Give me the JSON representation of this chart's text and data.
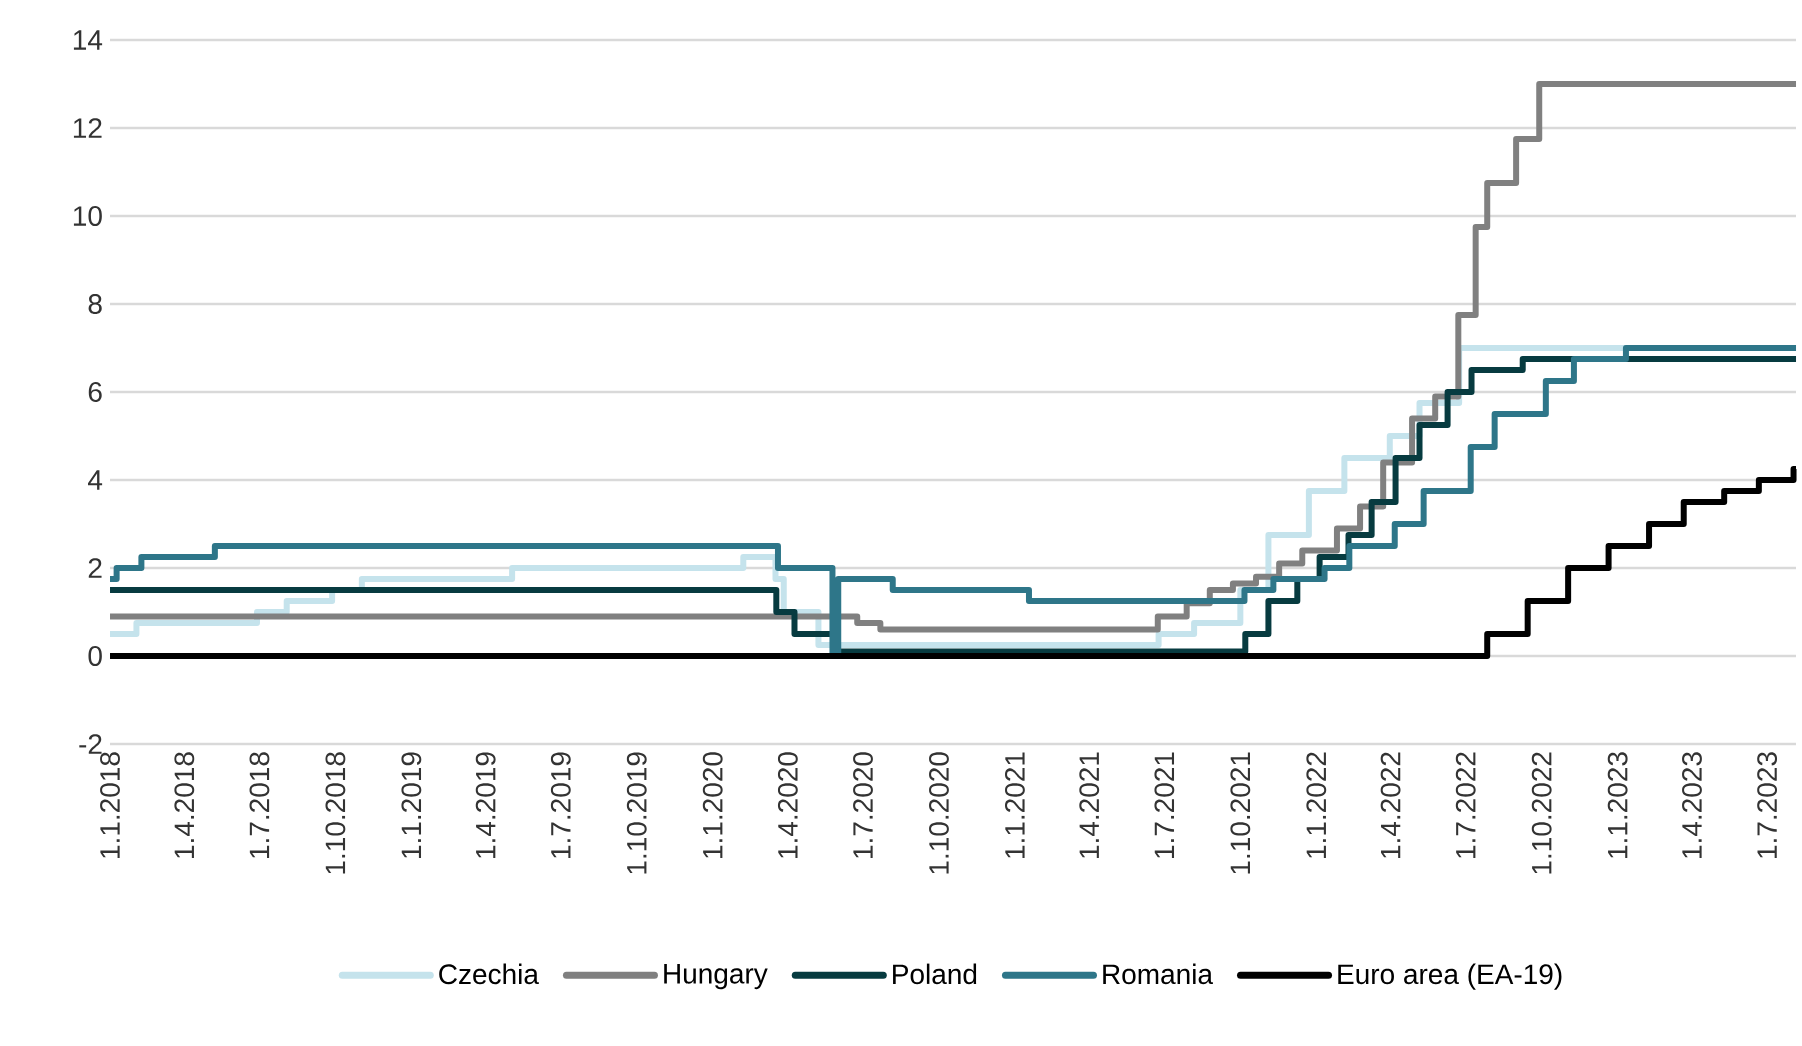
{
  "chart_data": {
    "type": "step",
    "ylim": [
      -2,
      14
    ],
    "yticks": [
      -2,
      0,
      2,
      4,
      6,
      8,
      10,
      12,
      14
    ],
    "xlim": [
      "2018-01-01",
      "2023-08-05"
    ],
    "xticks": [
      {
        "value": "2018-01-01",
        "label": "1.1.2018"
      },
      {
        "value": "2018-04-01",
        "label": "1.4.2018"
      },
      {
        "value": "2018-07-01",
        "label": "1.7.2018"
      },
      {
        "value": "2018-10-01",
        "label": "1.10.2018"
      },
      {
        "value": "2019-01-01",
        "label": "1.1.2019"
      },
      {
        "value": "2019-04-01",
        "label": "1.4.2019"
      },
      {
        "value": "2019-07-01",
        "label": "1.7.2019"
      },
      {
        "value": "2019-10-01",
        "label": "1.10.2019"
      },
      {
        "value": "2020-01-01",
        "label": "1.1.2020"
      },
      {
        "value": "2020-04-01",
        "label": "1.4.2020"
      },
      {
        "value": "2020-07-01",
        "label": "1.7.2020"
      },
      {
        "value": "2020-10-01",
        "label": "1.10.2020"
      },
      {
        "value": "2021-01-01",
        "label": "1.1.2021"
      },
      {
        "value": "2021-04-01",
        "label": "1.4.2021"
      },
      {
        "value": "2021-07-01",
        "label": "1.7.2021"
      },
      {
        "value": "2021-10-01",
        "label": "1.10.2021"
      },
      {
        "value": "2022-01-01",
        "label": "1.1.2022"
      },
      {
        "value": "2022-04-01",
        "label": "1.4.2022"
      },
      {
        "value": "2022-07-01",
        "label": "1.7.2022"
      },
      {
        "value": "2022-10-01",
        "label": "1.10.2022"
      },
      {
        "value": "2023-01-01",
        "label": "1.1.2023"
      },
      {
        "value": "2023-04-01",
        "label": "1.4.2023"
      },
      {
        "value": "2023-07-01",
        "label": "1.7.2023"
      }
    ],
    "grid": "y",
    "legend": "bottom",
    "line_style": "solid",
    "marker": "none",
    "series": [
      {
        "name": "Czechia",
        "color": "#c5e3ec",
        "x": [
          "2018-01-01",
          "2018-02-02",
          "2018-06-28",
          "2018-08-03",
          "2018-09-27",
          "2018-11-02",
          "2019-05-03",
          "2020-02-07",
          "2020-03-17",
          "2020-03-27",
          "2020-05-08",
          "2021-06-24",
          "2021-08-06",
          "2021-10-01",
          "2021-11-04",
          "2021-12-23",
          "2022-02-04",
          "2022-03-31",
          "2022-05-06",
          "2022-06-23",
          "2023-01-10"
        ],
        "values": [
          0.5,
          0.75,
          1.0,
          1.25,
          1.5,
          1.75,
          2.0,
          2.25,
          1.75,
          1.0,
          0.25,
          0.5,
          0.75,
          1.5,
          2.75,
          3.75,
          4.5,
          5.0,
          5.75,
          7.0,
          7.0
        ]
      },
      {
        "name": "Hungary",
        "color": "#808080",
        "x": [
          "2018-01-01",
          "2020-06-24",
          "2020-07-22",
          "2021-06-23",
          "2021-07-28",
          "2021-08-25",
          "2021-09-22",
          "2021-10-20",
          "2021-11-17",
          "2021-12-15",
          "2022-01-26",
          "2022-02-23",
          "2022-03-23",
          "2022-04-27",
          "2022-05-25",
          "2022-06-22",
          "2022-07-13",
          "2022-07-27",
          "2022-08-31",
          "2022-09-28",
          "2023-08-05"
        ],
        "values": [
          0.9,
          0.75,
          0.6,
          0.9,
          1.2,
          1.5,
          1.65,
          1.8,
          2.1,
          2.4,
          2.9,
          3.4,
          4.4,
          5.4,
          5.9,
          7.75,
          9.75,
          10.75,
          11.75,
          13.0,
          13.0
        ]
      },
      {
        "name": "Poland",
        "color": "#073b40",
        "x": [
          "2018-01-01",
          "2020-03-18",
          "2020-04-09",
          "2020-05-29",
          "2021-10-07",
          "2021-11-04",
          "2021-12-09",
          "2022-01-05",
          "2022-02-09",
          "2022-03-09",
          "2022-04-07",
          "2022-05-06",
          "2022-06-09",
          "2022-07-08",
          "2022-09-08",
          "2023-08-05"
        ],
        "values": [
          1.5,
          1.0,
          0.5,
          0.1,
          0.5,
          1.25,
          1.75,
          2.25,
          2.75,
          3.5,
          4.5,
          5.25,
          6.0,
          6.5,
          6.75,
          6.75
        ]
      },
      {
        "name": "Romania",
        "color": "#2e7689",
        "x": [
          "2018-01-01",
          "2018-01-09",
          "2018-02-08",
          "2018-05-08",
          "2020-03-20",
          "2020-05-25",
          "2020-06-01",
          "2020-08-06",
          "2021-01-18",
          "2021-10-06",
          "2021-11-10",
          "2022-01-11",
          "2022-02-10",
          "2022-04-06",
          "2022-05-11",
          "2022-07-07",
          "2022-08-05",
          "2022-10-06",
          "2022-11-09",
          "2023-01-11",
          "2023-08-05"
        ],
        "values": [
          1.75,
          2.0,
          2.25,
          2.5,
          2.0,
          0,
          1.75,
          1.5,
          1.25,
          1.5,
          1.75,
          2.0,
          2.5,
          3.0,
          3.75,
          4.75,
          5.5,
          6.25,
          6.75,
          7.0,
          7.0
        ]
      },
      {
        "name": "Euro area (EA-19)",
        "color": "#000000",
        "x": [
          "2018-01-01",
          "2022-07-27",
          "2022-09-14",
          "2022-11-02",
          "2022-12-21",
          "2023-02-08",
          "2023-03-22",
          "2023-05-10",
          "2023-06-21",
          "2023-08-02",
          "2023-08-05"
        ],
        "values": [
          0,
          0.5,
          1.25,
          2.0,
          2.5,
          3.0,
          3.5,
          3.75,
          4.0,
          4.25,
          4.25
        ]
      }
    ]
  }
}
